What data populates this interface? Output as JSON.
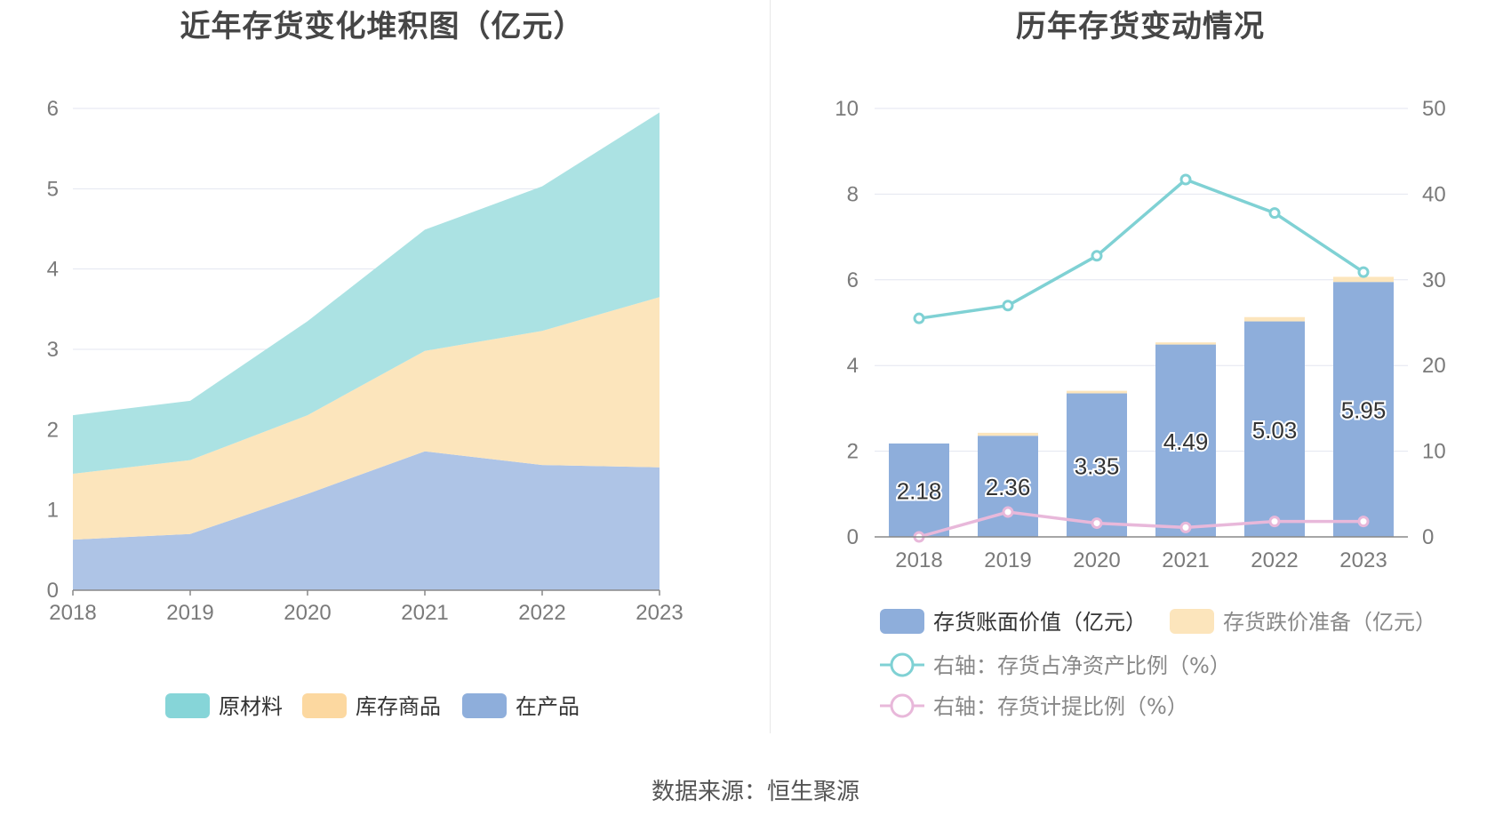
{
  "chart_data": [
    {
      "type": "area",
      "stacked": true,
      "title": "近年存货变化堆积图（亿元）",
      "categories": [
        "2018",
        "2019",
        "2020",
        "2021",
        "2022",
        "2023"
      ],
      "ylim": [
        0,
        6
      ],
      "yticks": [
        "0",
        "1",
        "2",
        "3",
        "4",
        "5",
        "6"
      ],
      "grid": true,
      "legend_position": "bottom",
      "series": [
        {
          "name": "在产品",
          "color": "#aec4e6",
          "legend_color": "#8eaedb",
          "values": [
            0.63,
            0.7,
            1.2,
            1.73,
            1.56,
            1.53
          ]
        },
        {
          "name": "库存商品",
          "color": "#fce5bc",
          "legend_color": "#fcd8a0",
          "values": [
            0.82,
            0.92,
            0.98,
            1.25,
            1.67,
            2.12
          ]
        },
        {
          "name": "原材料",
          "color": "#abe2e3",
          "legend_color": "#86d5d8",
          "values": [
            0.73,
            0.74,
            1.17,
            1.51,
            1.8,
            2.3
          ]
        }
      ],
      "legend_order": [
        "原材料",
        "库存商品",
        "在产品"
      ]
    },
    {
      "type": "bar",
      "stacked": true,
      "title": "历年存货变动情况",
      "categories": [
        "2018",
        "2019",
        "2020",
        "2021",
        "2022",
        "2023"
      ],
      "ylim": [
        0,
        10
      ],
      "yticks": [
        "0",
        "2",
        "4",
        "6",
        "8",
        "10"
      ],
      "y2lim": [
        0,
        50
      ],
      "y2ticks": [
        "0",
        "10",
        "20",
        "30",
        "40",
        "50"
      ],
      "grid": true,
      "legend_position": "bottom",
      "series": [
        {
          "name": "存货账面价值（亿元）",
          "kind": "bar",
          "color": "#8eaedb",
          "values": [
            2.18,
            2.36,
            3.35,
            4.49,
            5.03,
            5.95
          ],
          "labels": [
            "2.18",
            "2.36",
            "3.35",
            "4.49",
            "5.03",
            "5.95"
          ]
        },
        {
          "name": "存货跌价准备（亿元）",
          "kind": "bar",
          "color": "#fce5bc",
          "values": [
            0.0,
            0.07,
            0.06,
            0.05,
            0.1,
            0.12
          ]
        },
        {
          "name": "右轴：存货占净资产比例（%）",
          "kind": "line",
          "axis": "right",
          "color": "#7fd1d4",
          "values": [
            25.5,
            27.0,
            32.8,
            41.7,
            37.8,
            30.9
          ]
        },
        {
          "name": "右轴：存货计提比例（%）",
          "kind": "line",
          "axis": "right",
          "color": "#e8b8da",
          "values": [
            0.0,
            2.9,
            1.6,
            1.1,
            1.8,
            1.8
          ]
        }
      ]
    }
  ],
  "source": "数据来源：恒生聚源"
}
